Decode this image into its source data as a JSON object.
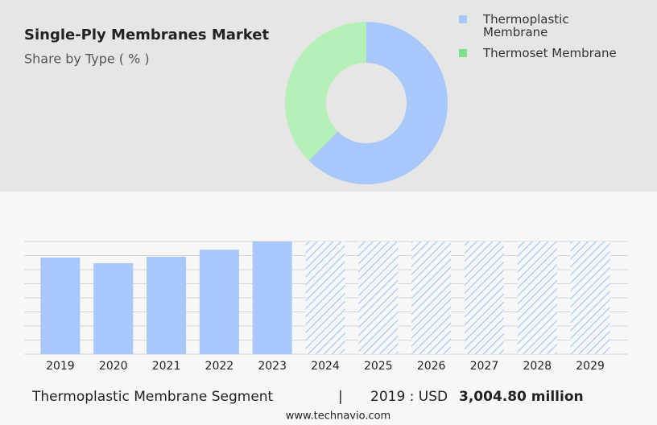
{
  "title": "Single-Ply Membranes Market",
  "subtitle": "Share by Type ( % )",
  "chart_data": [
    {
      "type": "donut",
      "categories": [
        "Thermoplastic Membrane",
        "Thermoset Membrane"
      ],
      "values": [
        62.5,
        37.5
      ],
      "colors": [
        "#a8c8fc",
        "#b5f0b9"
      ],
      "legend_colors": [
        "#a8c8fc",
        "#7ee28c"
      ],
      "legend": "top-right"
    },
    {
      "type": "bar",
      "categories": [
        "2019",
        "2020",
        "2021",
        "2022",
        "2023",
        "2024",
        "2025",
        "2026",
        "2027",
        "2028",
        "2029"
      ],
      "values": [
        3004.8,
        2830,
        3030,
        3250,
        3505,
        null,
        null,
        null,
        null,
        null,
        null
      ],
      "color": "#a8c8fc",
      "ylim": [
        0,
        3505.6
      ],
      "grid": true
    }
  ],
  "footer": {
    "segment": "Thermoplastic Membrane Segment",
    "separator": "|",
    "year_label": "2019 : USD",
    "value": "3,004.80 million",
    "website": "www.technavio.com"
  }
}
